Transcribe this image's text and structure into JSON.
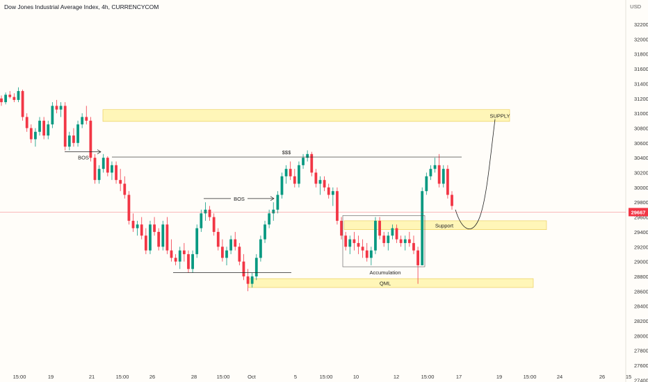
{
  "title": "Dow Jones Industrial Average Index, 4h, CURRENCYCOM",
  "currency": "USD",
  "chart_data": {
    "type": "candlestick",
    "y_ticks": [
      32200,
      32000,
      31800,
      31600,
      31400,
      31200,
      31000,
      30800,
      30600,
      30400,
      30200,
      30000,
      29800,
      29600,
      29400,
      29200,
      29000,
      28800,
      28600,
      28400,
      28200,
      28000,
      27800,
      27600,
      27400
    ],
    "ylim": [
      27300,
      32300
    ],
    "x_ticks": [
      "15:00",
      "19",
      "21",
      "15:00",
      "26",
      "28",
      "15:00",
      "Oct",
      "5",
      "15:00",
      "10",
      "12",
      "15:00",
      "17",
      "19",
      "15:00",
      "24",
      "26",
      "15"
    ],
    "last_price": "29667",
    "last_price_value": 29667,
    "candles": [
      [
        31200,
        31240,
        31100,
        31150
      ],
      [
        31150,
        31280,
        31120,
        31250
      ],
      [
        31250,
        31300,
        31200,
        31220
      ],
      [
        31220,
        31270,
        31150,
        31180
      ],
      [
        31180,
        31350,
        31150,
        31300
      ],
      [
        31300,
        31320,
        30900,
        30950
      ],
      [
        30950,
        31000,
        30750,
        30800
      ],
      [
        30800,
        30850,
        30600,
        30650
      ],
      [
        30650,
        30800,
        30550,
        30750
      ],
      [
        30750,
        30950,
        30700,
        30900
      ],
      [
        30900,
        30950,
        30650,
        30700
      ],
      [
        30700,
        30900,
        30650,
        30850
      ],
      [
        30850,
        31150,
        30800,
        31100
      ],
      [
        31100,
        31180,
        31000,
        31050
      ],
      [
        31050,
        31150,
        30950,
        31100
      ],
      [
        31100,
        31150,
        30500,
        30550
      ],
      [
        30550,
        30750,
        30500,
        30700
      ],
      [
        30700,
        30800,
        30550,
        30600
      ],
      [
        30600,
        30900,
        30550,
        30850
      ],
      [
        30850,
        31000,
        30800,
        30950
      ],
      [
        30950,
        31100,
        30850,
        30900
      ],
      [
        30900,
        30950,
        30350,
        30400
      ],
      [
        30400,
        30450,
        30050,
        30100
      ],
      [
        30100,
        30300,
        30050,
        30250
      ],
      [
        30250,
        30450,
        30200,
        30400
      ],
      [
        30400,
        30420,
        30150,
        30200
      ],
      [
        30200,
        30350,
        30100,
        30300
      ],
      [
        30300,
        30350,
        30050,
        30100
      ],
      [
        30100,
        30250,
        29950,
        30050
      ],
      [
        30050,
        30150,
        29850,
        29900
      ],
      [
        29900,
        29950,
        29500,
        29550
      ],
      [
        29550,
        29650,
        29400,
        29450
      ],
      [
        29450,
        29550,
        29350,
        29500
      ],
      [
        29500,
        29600,
        29300,
        29350
      ],
      [
        29350,
        29450,
        29100,
        29150
      ],
      [
        29150,
        29550,
        29100,
        29500
      ],
      [
        29500,
        29600,
        29350,
        29400
      ],
      [
        29400,
        29450,
        29150,
        29200
      ],
      [
        29200,
        29550,
        29150,
        29500
      ],
      [
        29500,
        29600,
        29100,
        29150
      ],
      [
        29150,
        29300,
        29000,
        29050
      ],
      [
        29050,
        29100,
        28950,
        29000
      ],
      [
        29000,
        29200,
        28900,
        29150
      ],
      [
        29150,
        29250,
        29000,
        29100
      ],
      [
        29100,
        29150,
        28850,
        28900
      ],
      [
        28900,
        29150,
        28850,
        29100
      ],
      [
        29100,
        29500,
        29050,
        29450
      ],
      [
        29450,
        29700,
        29400,
        29650
      ],
      [
        29650,
        29800,
        29550,
        29700
      ],
      [
        29700,
        29750,
        29550,
        29600
      ],
      [
        29600,
        29650,
        29350,
        29400
      ],
      [
        29400,
        29450,
        29150,
        29200
      ],
      [
        29200,
        29300,
        29000,
        29050
      ],
      [
        29050,
        29200,
        28950,
        29150
      ],
      [
        29150,
        29350,
        29100,
        29300
      ],
      [
        29300,
        29400,
        29150,
        29200
      ],
      [
        29200,
        29250,
        28950,
        29000
      ],
      [
        29000,
        29100,
        28750,
        28800
      ],
      [
        28800,
        28900,
        28600,
        28700
      ],
      [
        28700,
        28850,
        28650,
        28800
      ],
      [
        28800,
        29100,
        28750,
        29050
      ],
      [
        29050,
        29350,
        29000,
        29300
      ],
      [
        29300,
        29550,
        29250,
        29500
      ],
      [
        29500,
        29700,
        29450,
        29650
      ],
      [
        29650,
        29800,
        29550,
        29700
      ],
      [
        29700,
        29950,
        29650,
        29900
      ],
      [
        29900,
        30200,
        29850,
        30150
      ],
      [
        30150,
        30300,
        30050,
        30250
      ],
      [
        30250,
        30350,
        30100,
        30150
      ],
      [
        30150,
        30250,
        30000,
        30050
      ],
      [
        30050,
        30350,
        30000,
        30300
      ],
      [
        30300,
        30450,
        30250,
        30400
      ],
      [
        30400,
        30500,
        30350,
        30450
      ],
      [
        30450,
        30480,
        30150,
        30200
      ],
      [
        30200,
        30250,
        30000,
        30050
      ],
      [
        30050,
        30150,
        29900,
        30100
      ],
      [
        30100,
        30150,
        29950,
        30000
      ],
      [
        30000,
        30050,
        29850,
        29900
      ],
      [
        29900,
        30000,
        29750,
        29950
      ],
      [
        29950,
        30000,
        29500,
        29550
      ],
      [
        29550,
        29600,
        29300,
        29350
      ],
      [
        29350,
        29400,
        29150,
        29200
      ],
      [
        29200,
        29350,
        29100,
        29300
      ],
      [
        29300,
        29400,
        29150,
        29250
      ],
      [
        29250,
        29350,
        29100,
        29200
      ],
      [
        29200,
        29300,
        29050,
        29150
      ],
      [
        29150,
        29250,
        29000,
        29050
      ],
      [
        29050,
        29200,
        28950,
        29150
      ],
      [
        29150,
        29600,
        29100,
        29550
      ],
      [
        29550,
        29600,
        29300,
        29350
      ],
      [
        29350,
        29400,
        29200,
        29250
      ],
      [
        29250,
        29400,
        29150,
        29350
      ],
      [
        29350,
        29500,
        29300,
        29450
      ],
      [
        29450,
        29500,
        29250,
        29300
      ],
      [
        29300,
        29350,
        29200,
        29250
      ],
      [
        29250,
        29350,
        29150,
        29300
      ],
      [
        29300,
        29400,
        29200,
        29250
      ],
      [
        29250,
        29350,
        29100,
        29150
      ],
      [
        29150,
        29200,
        28700,
        28950
      ],
      [
        28950,
        30000,
        28950,
        29950
      ],
      [
        29950,
        30200,
        29900,
        30150
      ],
      [
        30150,
        30300,
        30100,
        30250
      ],
      [
        30250,
        30400,
        30200,
        30300
      ],
      [
        30300,
        30450,
        30000,
        30050
      ],
      [
        30050,
        30300,
        30000,
        30250
      ],
      [
        30250,
        30300,
        29850,
        29900
      ],
      [
        29900,
        29950,
        29700,
        29750
      ]
    ],
    "annotations": [
      {
        "label": "SUPPLY",
        "type": "zone"
      },
      {
        "label": "$$$",
        "type": "line"
      },
      {
        "label": "BOS",
        "type": "arrow"
      },
      {
        "label": "BOS",
        "type": "arrow"
      },
      {
        "label": "Support",
        "type": "zone"
      },
      {
        "label": "Accumulation",
        "type": "box"
      },
      {
        "label": "QML",
        "type": "zone"
      }
    ],
    "colors": {
      "up": "#089981",
      "down": "#f23645",
      "zone": "#fff6b8",
      "zone_border": "#e8c94d",
      "price_line": "#f23645"
    }
  }
}
